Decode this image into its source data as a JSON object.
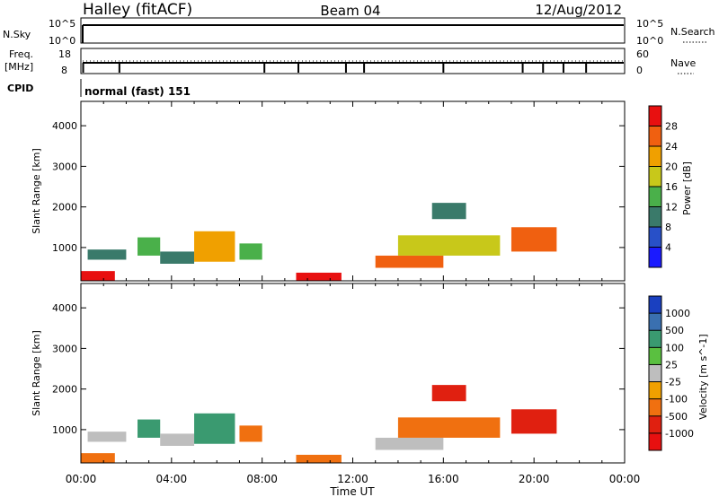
{
  "header": {
    "station": "Halley (fitACF)",
    "beam": "Beam 04",
    "date": "12/Aug/2012"
  },
  "strips": {
    "nsky_label": "N.Sky",
    "nsky_ticks": [
      "10^5",
      "10^0"
    ],
    "nsearch_label": "N.Search",
    "freq_label_line1": "Freq.",
    "freq_label_line2": "[MHz]",
    "freq_ticks": [
      "18",
      "8"
    ],
    "nave_label": "Nave",
    "nave_ticks": [
      "60",
      "0"
    ],
    "cpid_label": "CPID",
    "cpid_value": "normal (fast) 151"
  },
  "axes": {
    "ylabel": "Slant Range [km]",
    "xlabel": "Time UT",
    "yticks": [
      1000,
      2000,
      3000,
      4000
    ],
    "xticks": [
      "00:00",
      "04:00",
      "08:00",
      "12:00",
      "16:00",
      "20:00",
      "00:00"
    ],
    "ylim": [
      180,
      4600
    ],
    "xlim": [
      0,
      24
    ]
  },
  "power_scale": {
    "label": "Power [dB]",
    "ticks": [
      "4",
      "8",
      "12",
      "16",
      "20",
      "24",
      "28"
    ],
    "colors": [
      "#1a1aff",
      "#2850c8",
      "#3a7a6a",
      "#4ab04a",
      "#c8c81a",
      "#f0a000",
      "#f06010",
      "#e81010"
    ]
  },
  "velocity_scale": {
    "label": "Velocity [m s^-1]",
    "ticks": [
      "1000",
      "500",
      "100",
      "25",
      "-25",
      "-100",
      "-500",
      "-1000"
    ],
    "colors": [
      "#1a40c0",
      "#3a70b0",
      "#3a9a70",
      "#5ac040",
      "#bebebe",
      "#f0a000",
      "#f07010",
      "#e02010",
      "#e81010"
    ]
  },
  "chart_data": [
    {
      "type": "heatmap",
      "panel": "power",
      "xlabel": "Time UT",
      "ylabel": "Slant Range [km]",
      "colorbar_label": "Power [dB]",
      "x_units": "hours UT",
      "y_units": "km",
      "regions": [
        {
          "t0": 0.0,
          "t1": 1.5,
          "r0": 180,
          "r1": 420,
          "level": 28
        },
        {
          "t0": 0.3,
          "t1": 2.0,
          "r0": 700,
          "r1": 950,
          "level": 10
        },
        {
          "t0": 2.5,
          "t1": 3.5,
          "r0": 800,
          "r1": 1250,
          "level": 12
        },
        {
          "t0": 3.5,
          "t1": 5.0,
          "r0": 600,
          "r1": 900,
          "level": 8
        },
        {
          "t0": 5.0,
          "t1": 6.8,
          "r0": 650,
          "r1": 1400,
          "level": 20
        },
        {
          "t0": 7.0,
          "t1": 8.0,
          "r0": 700,
          "r1": 1100,
          "level": 12
        },
        {
          "t0": 9.5,
          "t1": 11.5,
          "r0": 180,
          "r1": 380,
          "level": 28
        },
        {
          "t0": 13.0,
          "t1": 16.0,
          "r0": 500,
          "r1": 800,
          "level": 24
        },
        {
          "t0": 14.0,
          "t1": 18.5,
          "r0": 800,
          "r1": 1300,
          "level": 16
        },
        {
          "t0": 15.5,
          "t1": 17.0,
          "r0": 1700,
          "r1": 2100,
          "level": 8
        },
        {
          "t0": 19.0,
          "t1": 21.0,
          "r0": 900,
          "r1": 1500,
          "level": 24
        }
      ]
    },
    {
      "type": "heatmap",
      "panel": "velocity",
      "xlabel": "Time UT",
      "ylabel": "Slant Range [km]",
      "colorbar_label": "Velocity [m s^-1]",
      "x_units": "hours UT",
      "y_units": "km",
      "regions": [
        {
          "t0": 0.0,
          "t1": 1.5,
          "r0": 180,
          "r1": 420,
          "level": -100
        },
        {
          "t0": 0.3,
          "t1": 2.0,
          "r0": 700,
          "r1": 950,
          "level": 0
        },
        {
          "t0": 2.5,
          "t1": 3.5,
          "r0": 800,
          "r1": 1250,
          "level": 100
        },
        {
          "t0": 3.5,
          "t1": 5.0,
          "r0": 600,
          "r1": 900,
          "level": 0
        },
        {
          "t0": 5.0,
          "t1": 6.8,
          "r0": 650,
          "r1": 1400,
          "level": 100
        },
        {
          "t0": 7.0,
          "t1": 8.0,
          "r0": 700,
          "r1": 1100,
          "level": -100
        },
        {
          "t0": 9.5,
          "t1": 11.5,
          "r0": 180,
          "r1": 380,
          "level": -100
        },
        {
          "t0": 13.0,
          "t1": 16.0,
          "r0": 500,
          "r1": 800,
          "level": 0
        },
        {
          "t0": 14.0,
          "t1": 18.5,
          "r0": 800,
          "r1": 1300,
          "level": -100
        },
        {
          "t0": 15.5,
          "t1": 17.0,
          "r0": 1700,
          "r1": 2100,
          "level": -500
        },
        {
          "t0": 19.0,
          "t1": 21.0,
          "r0": 900,
          "r1": 1500,
          "level": -500
        }
      ]
    }
  ]
}
